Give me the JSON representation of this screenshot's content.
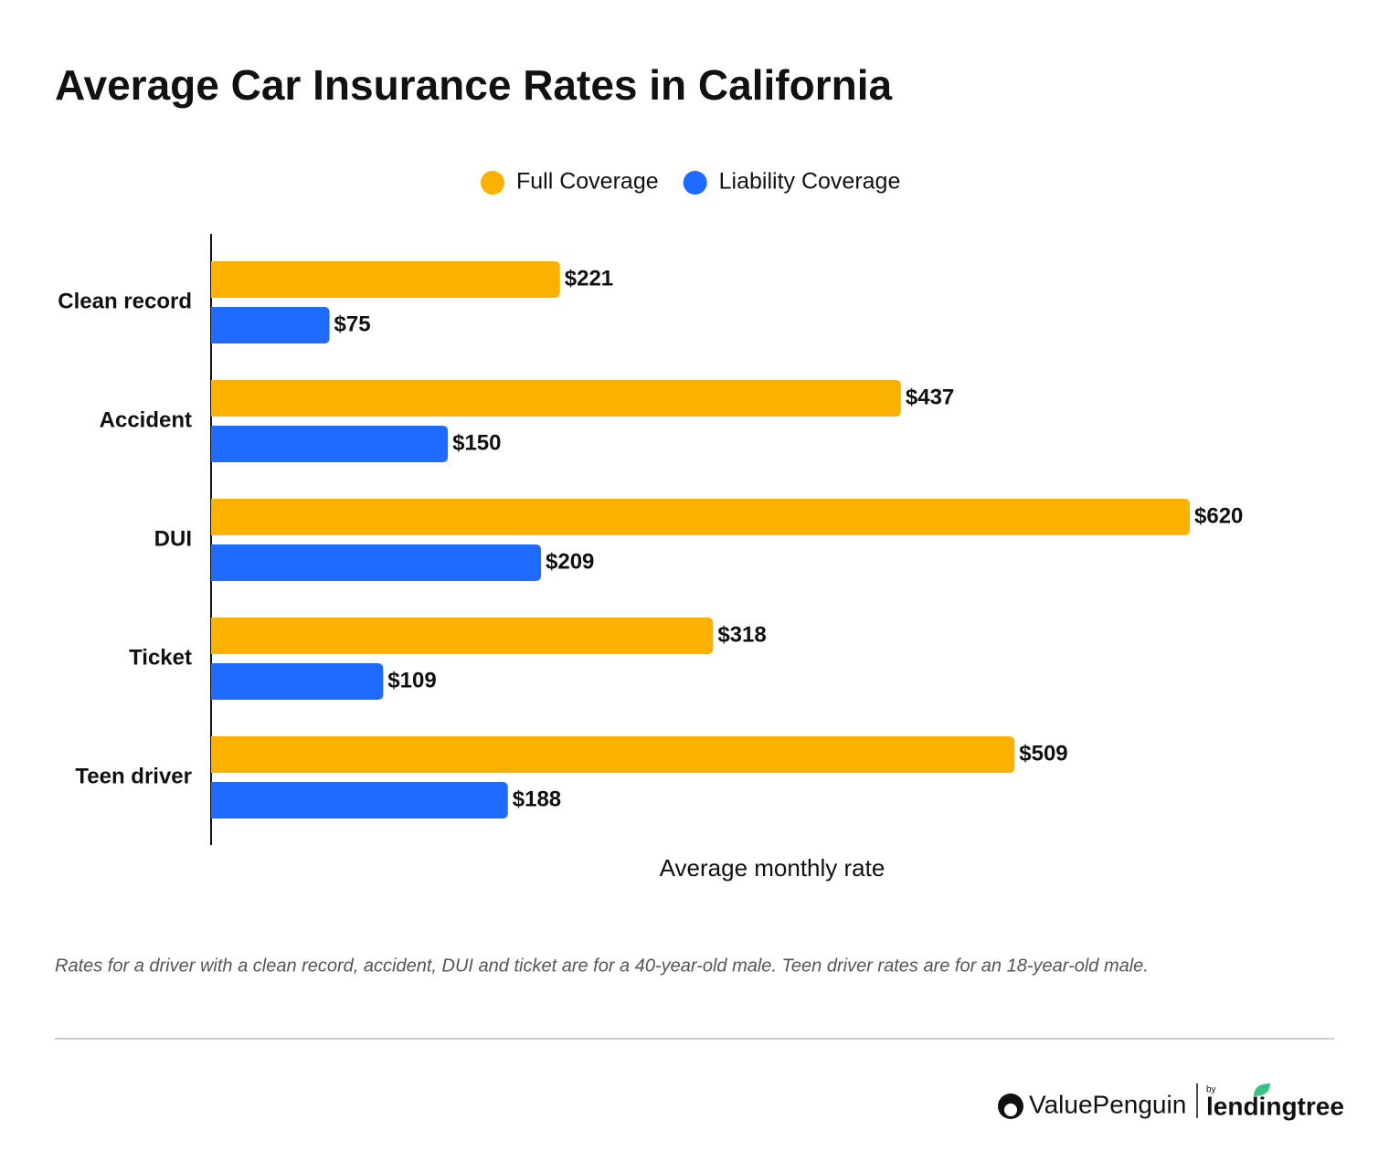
{
  "chart_data": {
    "type": "bar",
    "orientation": "horizontal",
    "title": "Average Car Insurance Rates in California",
    "categories": [
      "Clean record",
      "Accident",
      "DUI",
      "Ticket",
      "Teen driver"
    ],
    "series": [
      {
        "name": "Full Coverage",
        "color": "#fbb100",
        "values": [
          221,
          437,
          620,
          318,
          509
        ],
        "value_labels": [
          "$221",
          "$437",
          "$620",
          "$318",
          "$509"
        ]
      },
      {
        "name": "Liability Coverage",
        "color": "#1f6bff",
        "values": [
          75,
          150,
          209,
          109,
          188
        ],
        "value_labels": [
          "$75",
          "$150",
          "$209",
          "$109",
          "$188"
        ]
      }
    ],
    "x_label": "Average monthly rate",
    "note": "Rates for a driver with a clean record, accident, DUI and ticket are for a 40-year-old male. Teen driver rates are for an 18-year-old male."
  },
  "footer": {
    "brand": "ValuePenguin",
    "by": "by",
    "partner": "lendingtree"
  }
}
